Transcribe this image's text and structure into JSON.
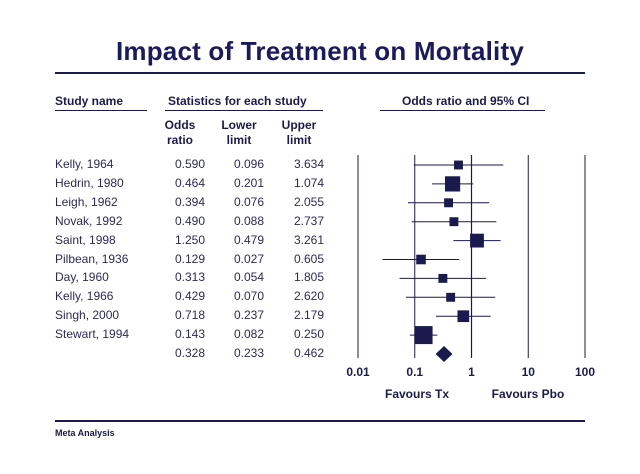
{
  "chart_data": {
    "type": "forest",
    "title": "Impact of Treatment on Mortality",
    "headers": {
      "study_name": "Study name",
      "statistics": "Statistics for each study",
      "plot": "Odds ratio and 95% CI"
    },
    "columns": [
      {
        "line1": "Odds",
        "line2": "ratio"
      },
      {
        "line1": "Lower",
        "line2": "limit"
      },
      {
        "line1": "Upper",
        "line2": "limit"
      }
    ],
    "studies": [
      {
        "name": "Kelly, 1964",
        "or": "0.590",
        "lower": "0.096",
        "upper": "3.634",
        "weight": 0.35
      },
      {
        "name": "Hedrin, 1980",
        "or": "0.464",
        "lower": "0.201",
        "upper": "1.074",
        "weight": 0.8
      },
      {
        "name": "Leigh, 1962",
        "or": "0.394",
        "lower": "0.076",
        "upper": "2.055",
        "weight": 0.35
      },
      {
        "name": "Novak, 1992",
        "or": "0.490",
        "lower": "0.088",
        "upper": "2.737",
        "weight": 0.35
      },
      {
        "name": "Saint, 1998",
        "or": "1.250",
        "lower": "0.479",
        "upper": "3.261",
        "weight": 0.7
      },
      {
        "name": "Pilbean, 1936",
        "or": "0.129",
        "lower": "0.027",
        "upper": "0.605",
        "weight": 0.4
      },
      {
        "name": "Day, 1960",
        "or": "0.313",
        "lower": "0.054",
        "upper": "1.805",
        "weight": 0.35
      },
      {
        "name": "Kelly, 1966",
        "or": "0.429",
        "lower": "0.070",
        "upper": "2.620",
        "weight": 0.35
      },
      {
        "name": "Singh, 2000",
        "or": "0.718",
        "lower": "0.237",
        "upper": "2.179",
        "weight": 0.55
      },
      {
        "name": "Stewart, 1994",
        "or": "0.143",
        "lower": "0.082",
        "upper": "0.250",
        "weight": 1.0
      }
    ],
    "summary": {
      "name": "",
      "or": "0.328",
      "lower": "0.233",
      "upper": "0.462"
    },
    "x_axis": {
      "scale": "log",
      "range": [
        0.01,
        100
      ],
      "ticks": [
        0.01,
        0.1,
        1,
        10,
        100
      ],
      "tick_labels": [
        "0.01",
        "0.1",
        "1",
        "10",
        "100"
      ],
      "gridlines": true
    },
    "axis_annotations": {
      "left": "Favours Tx",
      "right": "Favours Pbo"
    },
    "colors": {
      "primary": "#1a1a4e",
      "lines": "#1a1a4e"
    }
  },
  "footer": "Meta Analysis"
}
